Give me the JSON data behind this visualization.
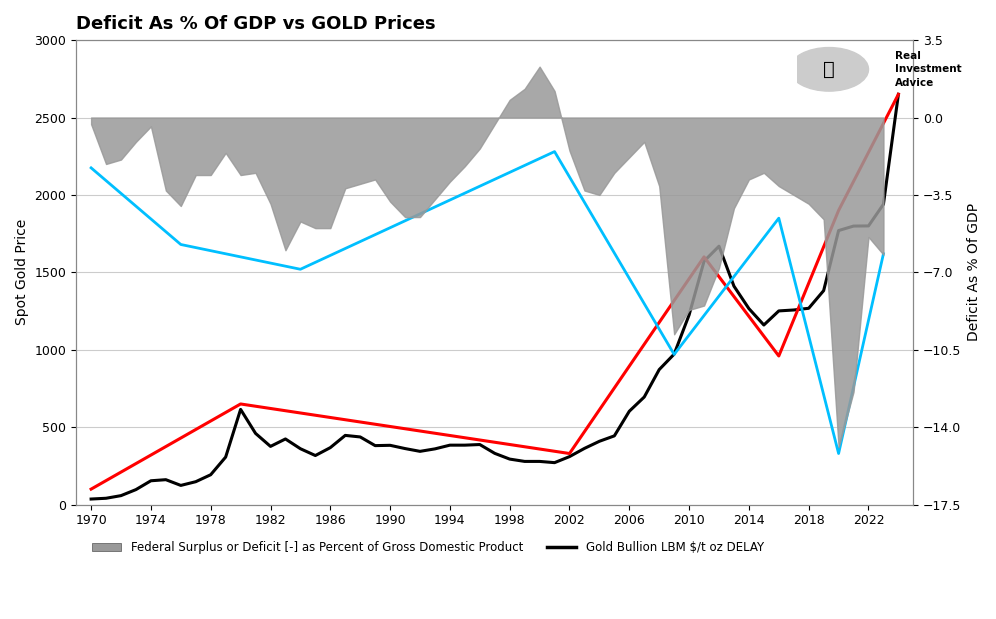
{
  "title": "Deficit As % Of GDP vs GOLD Prices",
  "ylabel_left": "Spot Gold Price",
  "ylabel_right": "Deficit As % Of GDP",
  "ylim_left": [
    0,
    3000
  ],
  "ylim_right": [
    -17.5,
    3.5
  ],
  "yticks_left": [
    0,
    500,
    1000,
    1500,
    2000,
    2500,
    3000
  ],
  "yticks_right": [
    -17.5,
    -14.0,
    -10.5,
    -7.0,
    -3.5,
    0.0,
    3.5
  ],
  "xticks": [
    1970,
    1974,
    1978,
    1982,
    1986,
    1990,
    1994,
    1998,
    2002,
    2006,
    2010,
    2014,
    2018,
    2022
  ],
  "xlim": [
    1969,
    2025
  ],
  "background_color": "#ffffff",
  "grid_color": "#cccccc",
  "deficit_years": [
    1970,
    1971,
    1972,
    1973,
    1974,
    1975,
    1976,
    1977,
    1978,
    1979,
    1980,
    1981,
    1982,
    1983,
    1984,
    1985,
    1986,
    1987,
    1988,
    1989,
    1990,
    1991,
    1992,
    1993,
    1994,
    1995,
    1996,
    1997,
    1998,
    1999,
    2000,
    2001,
    2002,
    2003,
    2004,
    2005,
    2006,
    2007,
    2008,
    2009,
    2010,
    2011,
    2012,
    2013,
    2014,
    2015,
    2016,
    2017,
    2018,
    2019,
    2020,
    2021,
    2022,
    2023
  ],
  "deficit_values": [
    -0.3,
    -2.1,
    -1.9,
    -1.1,
    -0.4,
    -3.3,
    -4.0,
    -2.6,
    -2.6,
    -1.6,
    -2.6,
    -2.5,
    -3.9,
    -6.0,
    -4.7,
    -5.0,
    -5.0,
    -3.2,
    -3.0,
    -2.8,
    -3.8,
    -4.5,
    -4.5,
    -3.7,
    -2.9,
    -2.2,
    -1.4,
    -0.3,
    0.8,
    1.3,
    2.3,
    1.2,
    -1.5,
    -3.3,
    -3.5,
    -2.5,
    -1.8,
    -1.1,
    -3.1,
    -9.8,
    -8.7,
    -8.5,
    -6.8,
    -4.1,
    -2.8,
    -2.5,
    -3.1,
    -3.5,
    -3.9,
    -4.6,
    -14.9,
    -12.4,
    -5.4,
    -6.2
  ],
  "gold_years": [
    1970,
    1971,
    1972,
    1973,
    1974,
    1975,
    1976,
    1977,
    1978,
    1979,
    1980,
    1981,
    1982,
    1983,
    1984,
    1985,
    1986,
    1987,
    1988,
    1989,
    1990,
    1991,
    1992,
    1993,
    1994,
    1995,
    1996,
    1997,
    1998,
    1999,
    2000,
    2001,
    2002,
    2003,
    2004,
    2005,
    2006,
    2007,
    2008,
    2009,
    2010,
    2011,
    2012,
    2013,
    2014,
    2015,
    2016,
    2017,
    2018,
    2019,
    2020,
    2021,
    2022,
    2023,
    2024
  ],
  "gold_values": [
    36,
    41,
    58,
    97,
    154,
    161,
    124,
    148,
    193,
    307,
    615,
    460,
    376,
    424,
    361,
    317,
    368,
    447,
    437,
    381,
    383,
    362,
    344,
    360,
    384,
    384,
    388,
    331,
    294,
    279,
    279,
    271,
    310,
    363,
    409,
    444,
    603,
    695,
    872,
    972,
    1225,
    1572,
    1669,
    1411,
    1266,
    1160,
    1251,
    1257,
    1268,
    1382,
    1770,
    1799,
    1800,
    1940,
    2650
  ],
  "red_line_years": [
    1970,
    1980,
    2002,
    2011,
    2016,
    2020,
    2024
  ],
  "red_line_values": [
    100,
    650,
    330,
    1600,
    960,
    1900,
    2650
  ],
  "cyan_line_points": [
    [
      1970,
      2175
    ],
    [
      1976,
      1680
    ],
    [
      1984,
      1520
    ],
    [
      2001,
      2280
    ],
    [
      2009,
      970
    ],
    [
      2016,
      1850
    ],
    [
      2020,
      330
    ],
    [
      2023,
      1620
    ]
  ],
  "deficit_fill_color": "#999999",
  "deficit_fill_alpha": 0.85,
  "gold_line_color": "#000000",
  "red_line_color": "#ff0000",
  "cyan_line_color": "#00bfff",
  "legend_gray_label": "Federal Surplus or Deficit [-] as Percent of Gross Domestic Product",
  "legend_black_label": "Gold Bullion LBM $/t oz DELAY"
}
